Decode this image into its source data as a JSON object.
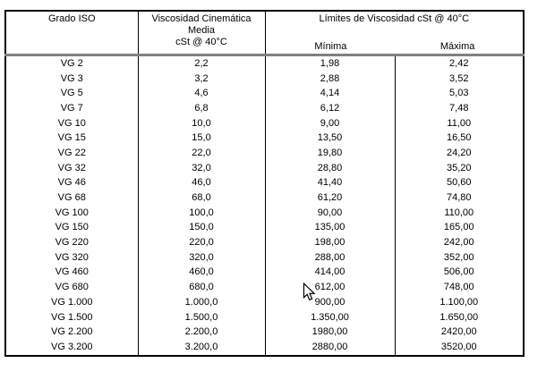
{
  "table": {
    "header": {
      "grado_iso": "Grado ISO",
      "viscosidad_lines": [
        "Viscosidad Cinemática",
        "Media",
        "cSt @ 40°C"
      ],
      "limites_title": "Límites de Viscosidad cSt @ 40°C",
      "minima_label": "Mínima",
      "maxima_label": "Máxima"
    },
    "rows": [
      {
        "grado": "VG 2",
        "media": "2,2",
        "minima": "1,98",
        "maxima": "2,42"
      },
      {
        "grado": "VG 3",
        "media": "3,2",
        "minima": "2,88",
        "maxima": "3,52"
      },
      {
        "grado": "VG 5",
        "media": "4,6",
        "minima": "4,14",
        "maxima": "5,03"
      },
      {
        "grado": "VG 7",
        "media": "6,8",
        "minima": "6,12",
        "maxima": "7,48"
      },
      {
        "grado": "VG 10",
        "media": "10,0",
        "minima": "9,00",
        "maxima": "11,00"
      },
      {
        "grado": "VG 15",
        "media": "15,0",
        "minima": "13,50",
        "maxima": "16,50"
      },
      {
        "grado": "VG 22",
        "media": "22,0",
        "minima": "19,80",
        "maxima": "24,20"
      },
      {
        "grado": "VG 32",
        "media": "32,0",
        "minima": "28,80",
        "maxima": "35,20"
      },
      {
        "grado": "VG 46",
        "media": "46,0",
        "minima": "41,40",
        "maxima": "50,60"
      },
      {
        "grado": "VG 68",
        "media": "68,0",
        "minima": "61,20",
        "maxima": "74,80"
      },
      {
        "grado": "VG 100",
        "media": "100,0",
        "minima": "90,00",
        "maxima": "110,00"
      },
      {
        "grado": "VG 150",
        "media": "150,0",
        "minima": "135,00",
        "maxima": "165,00"
      },
      {
        "grado": "VG 220",
        "media": "220,0",
        "minima": "198,00",
        "maxima": "242,00"
      },
      {
        "grado": "VG 320",
        "media": "320,0",
        "minima": "288,00",
        "maxima": "352,00"
      },
      {
        "grado": "VG 460",
        "media": "460,0",
        "minima": "414,00",
        "maxima": "506,00"
      },
      {
        "grado": "VG 680",
        "media": "680,0",
        "minima": "612,00",
        "maxima": "748,00"
      },
      {
        "grado": "VG 1.000",
        "media": "1.000,0",
        "minima": "900,00",
        "maxima": "1.100,00"
      },
      {
        "grado": "VG 1.500",
        "media": "1.500,0",
        "minima": "1.350,00",
        "maxima": "1.650,00"
      },
      {
        "grado": "VG 2.200",
        "media": "2.200,0",
        "minima": "1980,00",
        "maxima": "2420,00"
      },
      {
        "grado": "VG 3.200",
        "media": "3.200,0",
        "minima": "2880,00",
        "maxima": "3520,00"
      }
    ]
  },
  "icons": {
    "cursor": "arrow-pointer"
  },
  "colors": {
    "border_outer": "#000000",
    "border_inner": "#000000",
    "header_rule": "#808080",
    "background": "#ffffff",
    "text": "#000000"
  }
}
